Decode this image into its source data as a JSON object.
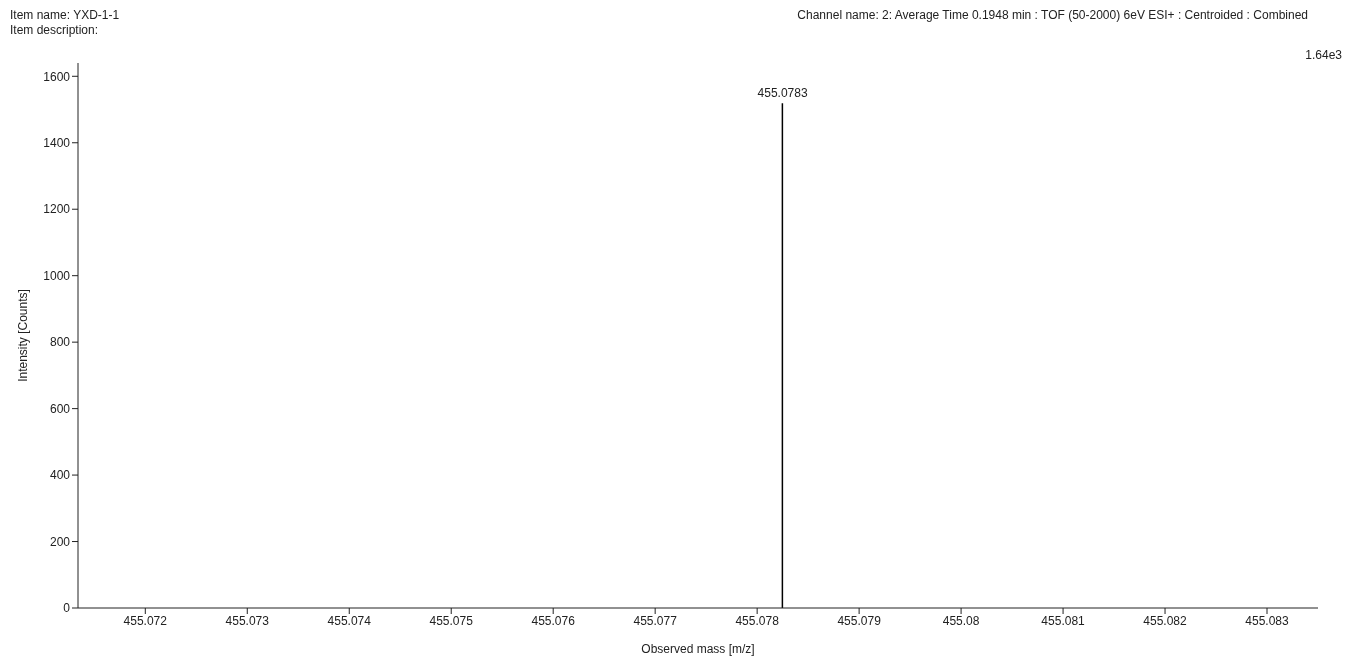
{
  "chart_data": {
    "type": "bar",
    "title": "Item name: YXD-1-1",
    "subtitle": "Item description:",
    "annotations": [
      "Channel name: 2: Average Time 0.1948 min : TOF (50-2000) 6eV ESI+ : Centroided : Combined",
      "1.64e3",
      {
        "text": "455.0783",
        "x": 455.07825,
        "y": 1519
      }
    ],
    "xlabel": "Observed mass [m/z]",
    "ylabel": "Intensity [Counts]",
    "x": [
      455.07825
    ],
    "values": [
      1519
    ],
    "color": "#000000",
    "xlim": [
      455.07134,
      455.0835
    ],
    "xticks": [
      455.072,
      455.073,
      455.074,
      455.075,
      455.076,
      455.077,
      455.078,
      455.079,
      455.08,
      455.081,
      455.082,
      455.083
    ],
    "ylim": [
      0,
      1640
    ],
    "yticks": [
      0,
      200,
      400,
      600,
      800,
      1000,
      1200,
      1400,
      1600
    ],
    "grid": false,
    "legend": false
  }
}
